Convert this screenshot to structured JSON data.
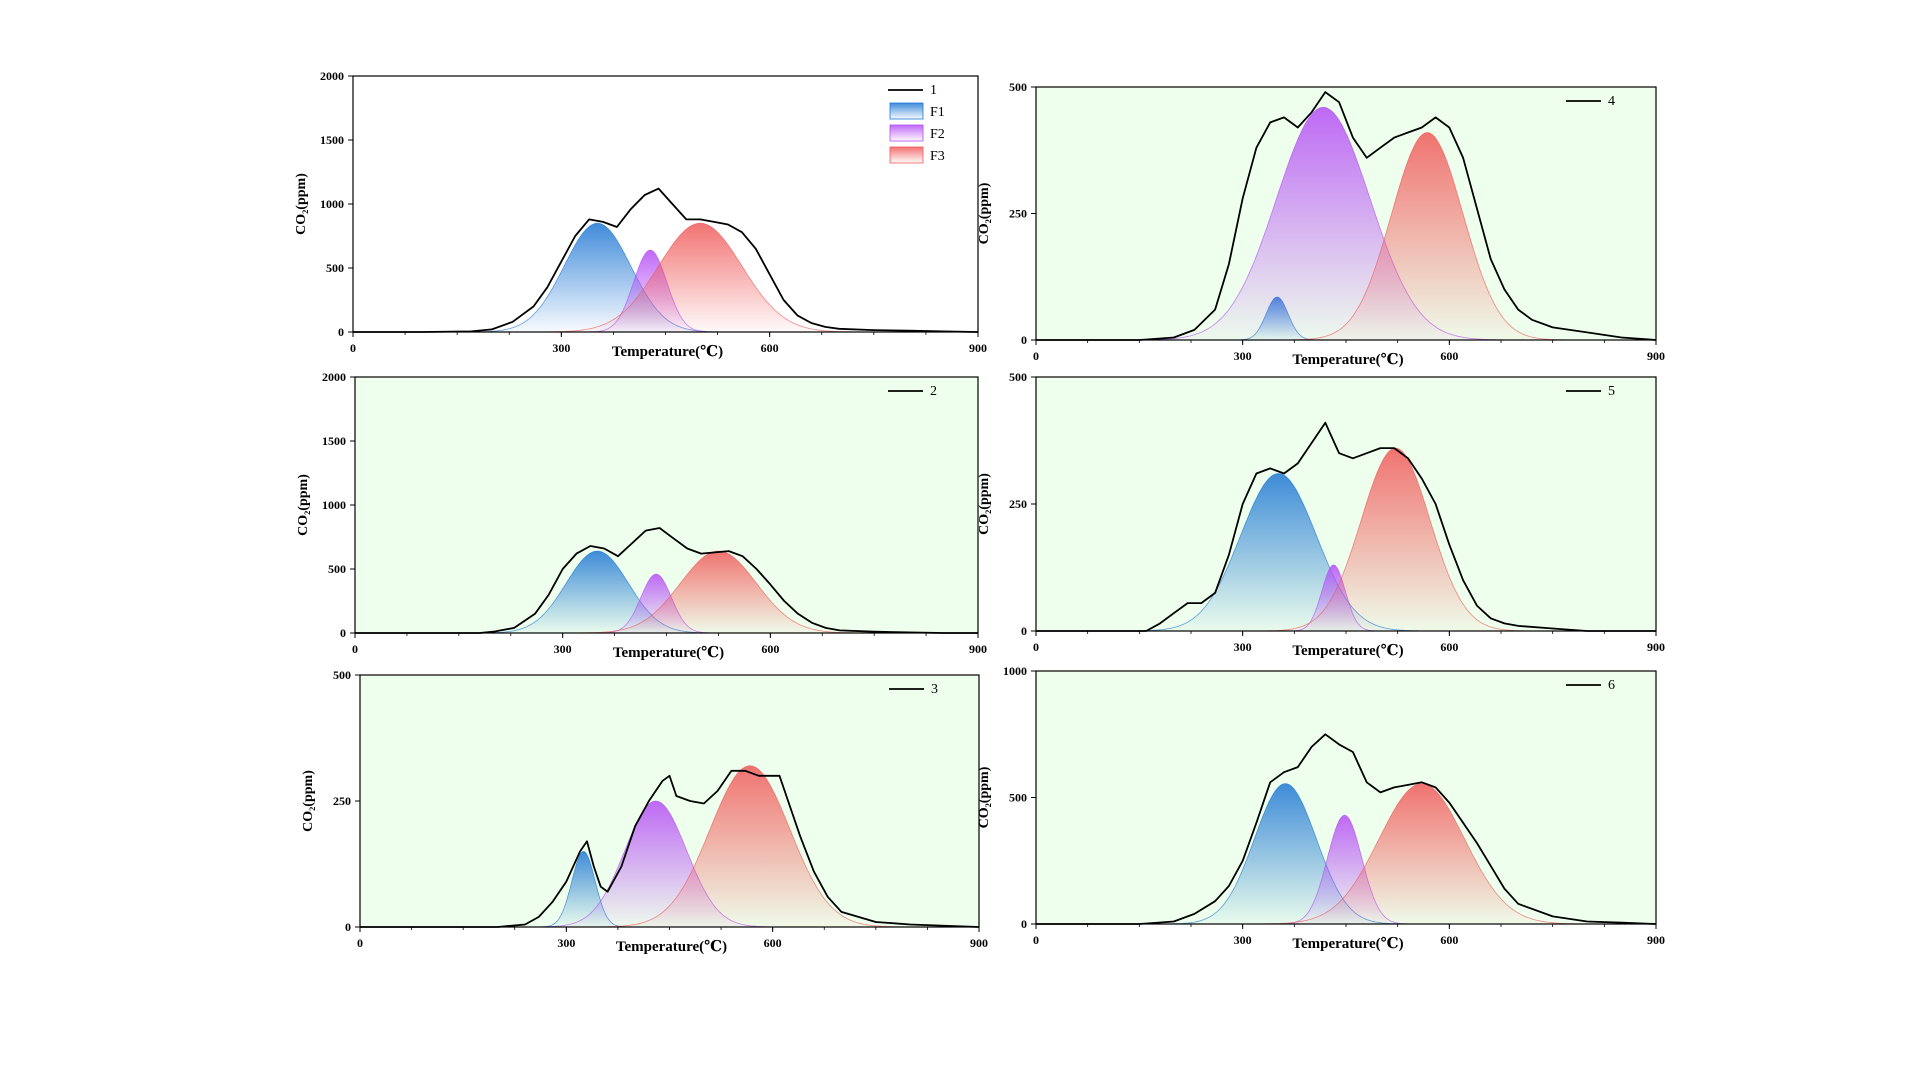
{
  "chart_data": [
    {
      "type": "area",
      "panel": "1",
      "xlabel": "Temperature(℃)",
      "ylabel": "CO₂(ppm)",
      "xlim": [
        0,
        900
      ],
      "ylim": [
        0,
        2000
      ],
      "xticks": [
        "0",
        "300",
        "600",
        "900"
      ],
      "yticks": [
        "0",
        "500",
        "1000",
        "1500",
        "2000"
      ],
      "background": "#ffffff",
      "legend": [
        "1",
        "F1",
        "F2",
        "F3"
      ],
      "legend_position": "top-right",
      "series": [
        {
          "name": "1",
          "kind": "line",
          "color": "#000000",
          "x": [
            0,
            100,
            170,
            200,
            230,
            260,
            280,
            300,
            320,
            340,
            360,
            380,
            400,
            420,
            440,
            460,
            480,
            500,
            520,
            540,
            560,
            580,
            600,
            620,
            640,
            660,
            680,
            700,
            750,
            800,
            850,
            900
          ],
          "y": [
            0,
            0,
            5,
            20,
            80,
            200,
            350,
            550,
            750,
            880,
            860,
            820,
            960,
            1070,
            1120,
            1000,
            880,
            880,
            860,
            840,
            780,
            650,
            450,
            250,
            130,
            70,
            40,
            25,
            15,
            10,
            5,
            0
          ]
        },
        {
          "name": "F1",
          "kind": "peak",
          "color": "#1f77d4",
          "center": 352,
          "height": 850,
          "sigma": 48
        },
        {
          "name": "F2",
          "kind": "peak",
          "color": "#b54ff5",
          "center": 428,
          "height": 640,
          "sigma": 24
        },
        {
          "name": "F3",
          "kind": "peak",
          "color": "#f05a5a",
          "center": 500,
          "height": 850,
          "sigma": 60
        }
      ]
    },
    {
      "type": "area",
      "panel": "2",
      "xlabel": "Temperature(℃)",
      "ylabel": "CO₂(ppm)",
      "xlim": [
        0,
        900
      ],
      "ylim": [
        0,
        2000
      ],
      "xticks": [
        "0",
        "300",
        "600",
        "900"
      ],
      "yticks": [
        "0",
        "500",
        "1000",
        "1500",
        "2000"
      ],
      "background": "#efffed",
      "legend": [
        "2"
      ],
      "legend_position": "top-right",
      "series": [
        {
          "name": "2",
          "kind": "line",
          "color": "#000000",
          "x": [
            0,
            100,
            180,
            200,
            230,
            260,
            280,
            300,
            320,
            340,
            360,
            380,
            400,
            420,
            440,
            460,
            480,
            500,
            520,
            540,
            560,
            580,
            600,
            620,
            640,
            660,
            680,
            700,
            750,
            800,
            850,
            900
          ],
          "y": [
            0,
            0,
            0,
            10,
            40,
            150,
            300,
            500,
            620,
            680,
            660,
            600,
            700,
            800,
            820,
            740,
            660,
            620,
            630,
            640,
            600,
            500,
            380,
            250,
            150,
            80,
            40,
            20,
            10,
            5,
            0,
            0
          ]
        },
        {
          "name": "F1",
          "kind": "peak",
          "color": "#1f77d4",
          "center": 350,
          "height": 640,
          "sigma": 45
        },
        {
          "name": "F2",
          "kind": "peak",
          "color": "#b54ff5",
          "center": 435,
          "height": 460,
          "sigma": 22
        },
        {
          "name": "F3",
          "kind": "peak",
          "color": "#f05a5a",
          "center": 525,
          "height": 640,
          "sigma": 55
        }
      ]
    },
    {
      "type": "area",
      "panel": "3",
      "xlabel": "Temperature(℃)",
      "ylabel": "CO₂(ppm)",
      "xlim": [
        0,
        900
      ],
      "ylim": [
        0,
        500
      ],
      "xticks": [
        "0",
        "300",
        "600",
        "900"
      ],
      "yticks": [
        "0",
        "250",
        "500"
      ],
      "background": "#efffed",
      "legend": [
        "3"
      ],
      "legend_position": "top-right",
      "series": [
        {
          "name": "3",
          "kind": "line",
          "color": "#000000",
          "x": [
            0,
            200,
            240,
            260,
            280,
            300,
            320,
            330,
            340,
            350,
            360,
            380,
            400,
            420,
            440,
            450,
            460,
            480,
            500,
            520,
            540,
            560,
            580,
            600,
            610,
            620,
            640,
            660,
            680,
            700,
            750,
            800,
            900
          ],
          "y": [
            0,
            0,
            5,
            20,
            50,
            90,
            150,
            170,
            120,
            80,
            70,
            120,
            200,
            250,
            290,
            300,
            260,
            250,
            245,
            270,
            310,
            310,
            300,
            300,
            300,
            260,
            180,
            110,
            60,
            30,
            10,
            5,
            0
          ]
        },
        {
          "name": "F1",
          "kind": "peak",
          "color": "#1f77d4",
          "center": 325,
          "height": 150,
          "sigma": 17
        },
        {
          "name": "F2",
          "kind": "peak",
          "color": "#b54ff5",
          "center": 430,
          "height": 250,
          "sigma": 45
        },
        {
          "name": "F3",
          "kind": "peak",
          "color": "#f05a5a",
          "center": 567,
          "height": 320,
          "sigma": 58
        }
      ]
    },
    {
      "type": "area",
      "panel": "4",
      "xlabel": "Temperature(℃)",
      "ylabel": "CO₂(ppm)",
      "xlim": [
        0,
        900
      ],
      "ylim": [
        0,
        500
      ],
      "xticks": [
        "0",
        "300",
        "600",
        "900"
      ],
      "yticks": [
        "0",
        "250",
        "500"
      ],
      "background": "#efffed",
      "legend": [
        "4"
      ],
      "legend_position": "top-right",
      "series": [
        {
          "name": "4",
          "kind": "line",
          "color": "#000000",
          "x": [
            0,
            150,
            200,
            230,
            260,
            280,
            300,
            320,
            340,
            360,
            380,
            400,
            420,
            440,
            460,
            480,
            500,
            520,
            540,
            560,
            580,
            600,
            620,
            640,
            660,
            680,
            700,
            720,
            750,
            800,
            850,
            900
          ],
          "y": [
            0,
            0,
            5,
            20,
            60,
            150,
            280,
            380,
            430,
            440,
            420,
            450,
            490,
            470,
            400,
            360,
            380,
            400,
            410,
            420,
            440,
            420,
            360,
            260,
            160,
            100,
            60,
            40,
            25,
            15,
            5,
            0
          ]
        },
        {
          "name": "F1",
          "kind": "peak",
          "color": "#1f77d4",
          "center": 350,
          "height": 85,
          "sigma": 16
        },
        {
          "name": "F2",
          "kind": "peak",
          "color": "#b54ff5",
          "center": 417,
          "height": 460,
          "sigma": 68
        },
        {
          "name": "F3",
          "kind": "peak",
          "color": "#f05a5a",
          "center": 568,
          "height": 410,
          "sigma": 52
        }
      ]
    },
    {
      "type": "area",
      "panel": "5",
      "xlabel": "Temperature(℃)",
      "ylabel": "CO₂(ppm)",
      "xlim": [
        0,
        900
      ],
      "ylim": [
        0,
        500
      ],
      "xticks": [
        "0",
        "300",
        "600",
        "900"
      ],
      "yticks": [
        "0",
        "250",
        "500"
      ],
      "background": "#efffed",
      "legend": [
        "5"
      ],
      "legend_position": "top-right",
      "series": [
        {
          "name": "5",
          "kind": "line",
          "color": "#000000",
          "x": [
            0,
            160,
            180,
            200,
            220,
            240,
            260,
            280,
            300,
            320,
            340,
            360,
            380,
            400,
            420,
            440,
            460,
            480,
            500,
            520,
            540,
            560,
            580,
            600,
            620,
            640,
            660,
            680,
            700,
            750,
            800,
            900
          ],
          "y": [
            0,
            0,
            15,
            35,
            55,
            55,
            75,
            150,
            250,
            310,
            320,
            310,
            330,
            370,
            410,
            350,
            340,
            350,
            360,
            360,
            340,
            300,
            250,
            170,
            100,
            50,
            25,
            15,
            10,
            5,
            0,
            0
          ]
        },
        {
          "name": "F1",
          "kind": "peak",
          "color": "#1f77d4",
          "center": 352,
          "height": 310,
          "sigma": 55
        },
        {
          "name": "F2",
          "kind": "peak",
          "color": "#b54ff5",
          "center": 432,
          "height": 130,
          "sigma": 17
        },
        {
          "name": "F3",
          "kind": "peak",
          "color": "#f05a5a",
          "center": 522,
          "height": 360,
          "sigma": 50
        }
      ]
    },
    {
      "type": "area",
      "panel": "6",
      "xlabel": "Temperature(℃)",
      "ylabel": "CO₂(ppm)",
      "xlim": [
        0,
        900
      ],
      "ylim": [
        0,
        1000
      ],
      "xticks": [
        "0",
        "300",
        "600",
        "900"
      ],
      "yticks": [
        "0",
        "500",
        "1000"
      ],
      "background": "#efffed",
      "legend": [
        "6"
      ],
      "legend_position": "top-right",
      "series": [
        {
          "name": "6",
          "kind": "line",
          "color": "#000000",
          "x": [
            0,
            150,
            200,
            230,
            260,
            280,
            300,
            320,
            340,
            360,
            380,
            400,
            420,
            440,
            460,
            480,
            500,
            520,
            540,
            560,
            580,
            600,
            620,
            640,
            660,
            680,
            700,
            750,
            800,
            850,
            900
          ],
          "y": [
            0,
            0,
            10,
            40,
            90,
            150,
            250,
            400,
            560,
            600,
            620,
            700,
            750,
            710,
            680,
            560,
            520,
            540,
            550,
            560,
            540,
            480,
            400,
            320,
            230,
            140,
            80,
            30,
            10,
            5,
            0
          ]
        },
        {
          "name": "F1",
          "kind": "peak",
          "color": "#1f77d4",
          "center": 362,
          "height": 555,
          "sigma": 45
        },
        {
          "name": "F2",
          "kind": "peak",
          "color": "#b54ff5",
          "center": 448,
          "height": 430,
          "sigma": 25
        },
        {
          "name": "F3",
          "kind": "peak",
          "color": "#f05a5a",
          "center": 560,
          "height": 555,
          "sigma": 62
        }
      ]
    }
  ]
}
